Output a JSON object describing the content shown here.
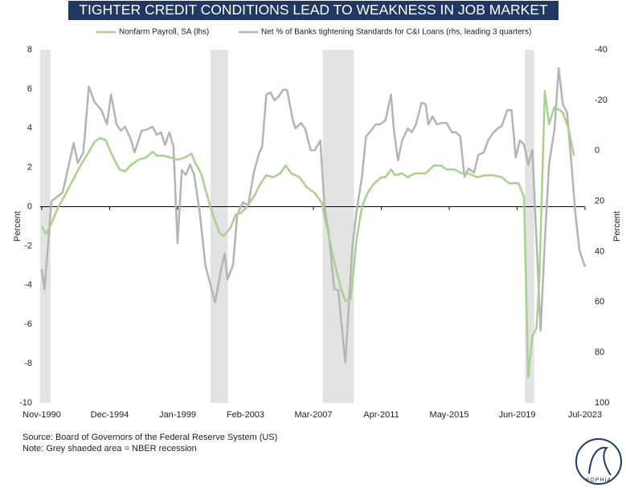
{
  "chart_data": {
    "type": "line",
    "title": "TIGHTER CREDIT CONDITIONS LEAD TO WEAKNESS IN JOB MARKET",
    "ylabel": "Percent",
    "y2label": "Percent",
    "source": "Source: Board of Governors of the Federal Reserve System (US)",
    "note": "Note: Grey shaeded area = NBER recession",
    "logo_text": "SOPHIA",
    "xlim": [
      "1990-11",
      "2023-07"
    ],
    "xticks": [
      {
        "value": "1990-11",
        "label": "Nov-1990"
      },
      {
        "value": "1994-12",
        "label": "Dec-1994"
      },
      {
        "value": "1999-01",
        "label": "Jan-1999"
      },
      {
        "value": "2003-02",
        "label": "Feb-2003"
      },
      {
        "value": "2007-03",
        "label": "Mar-2007"
      },
      {
        "value": "2011-04",
        "label": "Apr-2011"
      },
      {
        "value": "2015-05",
        "label": "May-2015"
      },
      {
        "value": "2019-06",
        "label": "Jun-2019"
      },
      {
        "value": "2023-07",
        "label": "Jul-2023"
      }
    ],
    "ylim": [
      -10,
      8
    ],
    "yticks": [
      8,
      6,
      4,
      2,
      0,
      -2,
      -4,
      -6,
      -8,
      -10
    ],
    "y2lim": [
      100,
      -40
    ],
    "y2ticks": [
      -40,
      -20,
      0,
      20,
      40,
      60,
      80,
      100
    ],
    "recession_color": "#e3e3e3",
    "recessions": [
      [
        "1990-11",
        "1991-03"
      ],
      [
        "2001-03",
        "2001-11"
      ],
      [
        "2007-12",
        "2009-06"
      ],
      [
        "2020-02",
        "2020-04"
      ]
    ],
    "series": [
      {
        "name": "Nonfarm Payroll, SA (lhs)",
        "color": "#a9d18e",
        "axis": "y",
        "x": [
          "1990-11",
          "1991-02",
          "1991-05",
          "1991-11",
          "1992-03",
          "1992-09",
          "1993-03",
          "1993-09",
          "1994-01",
          "1994-05",
          "1994-09",
          "1995-02",
          "1995-07",
          "1995-11",
          "1996-03",
          "1996-09",
          "1997-02",
          "1997-07",
          "1997-10",
          "1998-03",
          "1998-08",
          "1999-01",
          "1999-06",
          "1999-11",
          "2000-02",
          "2000-06",
          "2000-09",
          "2001-02",
          "2001-07",
          "2001-10",
          "2002-03",
          "2002-07",
          "2002-11",
          "2003-03",
          "2003-08",
          "2004-01",
          "2004-05",
          "2004-10",
          "2005-03",
          "2005-07",
          "2005-11",
          "2006-05",
          "2006-10",
          "2007-04",
          "2007-09",
          "2008-01",
          "2008-06",
          "2008-11",
          "2009-02",
          "2009-06",
          "2009-10",
          "2010-02",
          "2010-06",
          "2010-11",
          "2011-04",
          "2011-07",
          "2011-11",
          "2012-02",
          "2012-07",
          "2012-11",
          "2013-04",
          "2013-12",
          "2014-06",
          "2014-11",
          "2015-03",
          "2015-09",
          "2016-02",
          "2016-07",
          "2017-01",
          "2017-07",
          "2018-01",
          "2018-07",
          "2018-12",
          "2019-07",
          "2019-11",
          "2020-02",
          "2020-05",
          "2020-08",
          "2020-10",
          "2021-02",
          "2021-05",
          "2021-09",
          "2022-03",
          "2022-07",
          "2022-11"
        ],
        "values": [
          -1.0,
          -1.4,
          -1.0,
          0,
          0.5,
          1.3,
          2.1,
          2.8,
          3.3,
          3.5,
          3.4,
          2.6,
          1.9,
          1.8,
          2.1,
          2.4,
          2.5,
          2.8,
          2.6,
          2.6,
          2.5,
          2.4,
          2.5,
          2.7,
          2.2,
          1.7,
          0.9,
          -0.3,
          -1.3,
          -1.5,
          -1.1,
          -0.4,
          -0.3,
          0,
          0.5,
          1.2,
          1.6,
          1.5,
          1.7,
          2.1,
          1.7,
          1.5,
          1.0,
          0.7,
          0.2,
          -1.1,
          -2.8,
          -4.2,
          -4.8,
          -4.7,
          -1.7,
          0,
          0.7,
          1.2,
          1.5,
          1.5,
          1.9,
          1.6,
          1.7,
          1.5,
          1.7,
          1.7,
          2.1,
          2.1,
          1.9,
          1.9,
          1.7,
          1.7,
          1.5,
          1.6,
          1.6,
          1.5,
          1.2,
          1.2,
          0.5,
          -8.7,
          -6.6,
          -6.2,
          -3.8,
          5.9,
          4.2,
          5.1,
          4.8,
          4.0,
          2.6
        ]
      },
      {
        "name": "Net % of Banks tightening Standards for C&I Loans (rhs, leading 3 quarters)",
        "color": "#b4b4b4",
        "axis": "y2",
        "x": [
          "1990-11",
          "1991-01",
          "1991-06",
          "1992-02",
          "1992-10",
          "1993-01",
          "1993-05",
          "1993-09",
          "1994-01",
          "1994-06",
          "1994-10",
          "1995-01",
          "1995-05",
          "1995-08",
          "1995-11",
          "1996-03",
          "1996-06",
          "1996-11",
          "1997-02",
          "1997-07",
          "1997-10",
          "1998-01",
          "1998-04",
          "1998-07",
          "1998-10",
          "1999-01",
          "1999-04",
          "1999-07",
          "1999-10",
          "2000-01",
          "2000-05",
          "2000-09",
          "2001-04",
          "2001-09",
          "2001-11",
          "2002-01",
          "2002-05",
          "2002-08",
          "2002-12",
          "2003-04",
          "2003-08",
          "2003-12",
          "2004-02",
          "2004-05",
          "2004-08",
          "2004-11",
          "2005-02",
          "2005-05",
          "2005-08",
          "2005-12",
          "2006-02",
          "2006-06",
          "2006-09",
          "2007-01",
          "2007-04",
          "2007-08",
          "2007-11",
          "2008-02",
          "2008-06",
          "2008-09",
          "2009-02",
          "2009-07",
          "2009-10",
          "2010-02",
          "2010-05",
          "2010-09",
          "2010-12",
          "2011-03",
          "2011-07",
          "2011-11",
          "2012-01",
          "2012-04",
          "2012-07",
          "2012-11",
          "2013-02",
          "2013-05",
          "2013-09",
          "2013-12",
          "2014-02",
          "2014-05",
          "2014-08",
          "2014-12",
          "2015-03",
          "2015-07",
          "2015-10",
          "2016-01",
          "2016-04",
          "2016-07",
          "2016-11",
          "2017-02",
          "2017-06",
          "2017-09",
          "2018-01",
          "2018-04",
          "2018-07",
          "2018-11",
          "2019-02",
          "2019-05",
          "2019-08",
          "2019-11",
          "2020-02",
          "2020-05",
          "2020-11",
          "2021-02",
          "2021-05",
          "2021-09",
          "2021-12",
          "2022-03",
          "2022-06",
          "2022-09",
          "2022-12",
          "2023-03",
          "2023-07"
        ],
        "values": [
          47,
          55,
          20,
          16.6,
          -3,
          4.9,
          0.7,
          -25.4,
          -19.3,
          -16.1,
          -10.4,
          -22.2,
          -10.4,
          -7.9,
          -9.5,
          -4.7,
          0.7,
          -7.9,
          -8.2,
          -9.5,
          -6.3,
          -7.3,
          -2.2,
          -7.3,
          -1.8,
          36.7,
          7.7,
          9.6,
          5.5,
          9.6,
          24.6,
          45.3,
          60.2,
          45.3,
          40.8,
          51,
          45.3,
          25.5,
          20.5,
          21.7,
          8.7,
          0.7,
          -1.5,
          -22.2,
          -23.1,
          -20,
          -21.5,
          -24.1,
          -24.1,
          -12.6,
          -8.8,
          -11,
          -8.8,
          -0.2,
          -0.2,
          -4,
          22.4,
          32.5,
          54.8,
          55.4,
          84.1,
          38.9,
          24.6,
          10.3,
          -5.6,
          -8.2,
          -10.4,
          -10.4,
          -12,
          -22.2,
          -8.8,
          3.9,
          -4,
          -8.8,
          -7.3,
          -10.4,
          -19,
          -18.4,
          -10.4,
          -13.6,
          -10.4,
          -11,
          -11,
          -7.3,
          -7.3,
          -5.6,
          10.3,
          7.1,
          8.7,
          1.7,
          0.7,
          -4,
          -7.3,
          -8.8,
          -9.8,
          -16.1,
          -16.1,
          2.7,
          -4,
          -2.5,
          5.5,
          -0.2,
          71.4,
          35.7,
          5.5,
          -8.8,
          -32.7,
          -18.4,
          -15.2,
          3.9,
          24.6,
          39.5,
          46
        ]
      }
    ]
  }
}
